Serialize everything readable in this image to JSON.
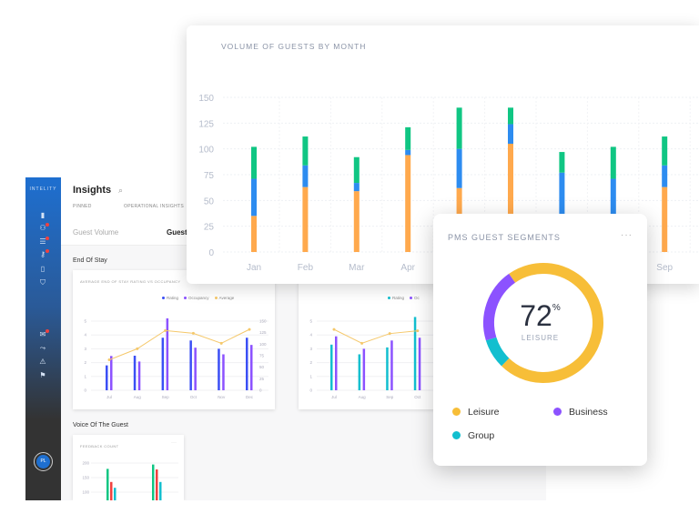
{
  "dashboard": {
    "logo": "INTELITY",
    "title": "Insights",
    "tabs": [
      "PINNED",
      "OPERATIONAL INSIGHTS"
    ],
    "subtabs": [
      "Guest Volume",
      "Guest"
    ],
    "sidebar_icons": [
      "bar-chart-icon",
      "users-icon",
      "list-icon",
      "key-icon",
      "document-icon",
      "shield-icon",
      "inbox-icon",
      "chart-trend-icon",
      "alert-icon",
      "flag-icon"
    ],
    "avatar": "PL",
    "section_end_of_stay": "End Of Stay",
    "section_voice": "Voice Of The Guest",
    "accent": "#1e6fd0"
  },
  "chart_data": [
    {
      "type": "bar",
      "stacked": true,
      "title": "VOLUME OF GUESTS BY MONTH",
      "categories": [
        "Jan",
        "Feb",
        "Mar",
        "Apr",
        "May",
        "Jun",
        "Jul",
        "Aug",
        "Sep"
      ],
      "series": [
        {
          "color": "#ffa94d",
          "values": [
            35,
            63,
            59,
            94,
            62,
            105,
            35,
            35,
            63
          ]
        },
        {
          "color": "#2d8cf0",
          "values": [
            36,
            21,
            8,
            5,
            38,
            19,
            42,
            36,
            21
          ]
        },
        {
          "color": "#10c683",
          "values": [
            31,
            28,
            25,
            22,
            40,
            16,
            20,
            31,
            28
          ]
        }
      ],
      "yticks": [
        0,
        25,
        50,
        75,
        100,
        125,
        150
      ],
      "ylim": [
        0,
        150
      ],
      "grid": true
    },
    {
      "type": "pie",
      "title": "PMS GUEST SEGMENTS",
      "more": "···",
      "center_value": "72",
      "center_unit": "%",
      "center_label": "LEISURE",
      "slices": [
        {
          "name": "Leisure",
          "value": 72,
          "color": "#f7be38"
        },
        {
          "name": "Group",
          "value": 8,
          "color": "#12bfcf"
        },
        {
          "name": "Business",
          "value": 20,
          "color": "#8c52ff"
        }
      ]
    },
    {
      "type": "bar",
      "title": "AVERAGE END OF STAY RATING VS OCCUPANCY",
      "categories": [
        "Jul",
        "Aug",
        "Sep",
        "Oct",
        "Nov",
        "Dec"
      ],
      "legend": [
        "Rating",
        "Occupancy",
        "Average"
      ],
      "colors": [
        "#3b4ff5",
        "#8c52ff",
        "#f5c86a"
      ],
      "rating": [
        1.8,
        2.5,
        3.8,
        3.6,
        3.0,
        3.8
      ],
      "occupancy": [
        62,
        52,
        130,
        77,
        65,
        82
      ],
      "average": [
        55,
        75,
        108,
        103,
        85,
        110
      ],
      "yticks_left": [
        0,
        1,
        2,
        3,
        4,
        5
      ],
      "yticks_right": [
        0,
        25,
        50,
        75,
        100,
        125,
        150
      ]
    },
    {
      "type": "bar",
      "categories": [
        "Jul",
        "Aug",
        "Sep",
        "Oct"
      ],
      "legend": [
        "Rating",
        "Oc"
      ],
      "colors": [
        "#12bfcf",
        "#8c52ff",
        "#f5c86a"
      ],
      "rating": [
        3.3,
        2.6,
        3.1,
        5.3
      ],
      "occupancy": [
        3.9,
        3.0,
        3.6,
        3.8
      ],
      "average": [
        4.4,
        3.4,
        4.1,
        4.3
      ],
      "yticks_left": [
        0,
        1,
        2,
        3,
        4,
        5
      ]
    },
    {
      "type": "bar",
      "title": "FEEDBACK COUNT",
      "more": "···",
      "colors": [
        "#10c683",
        "#f0413f",
        "#12bfcf"
      ],
      "groups": [
        [
          180,
          135,
          115
        ],
        [
          195,
          178,
          135
        ]
      ],
      "yticks": [
        100,
        150,
        200
      ]
    }
  ]
}
